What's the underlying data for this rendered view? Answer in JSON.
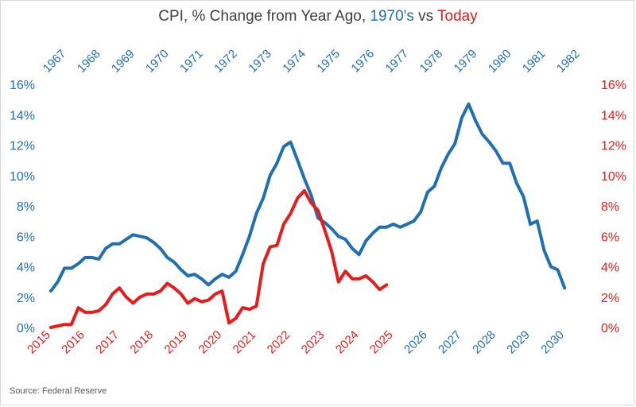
{
  "title": {
    "part1": "CPI, % Change from Year Ago, ",
    "part2": "1970's",
    "part3": " vs ",
    "part4": "Today"
  },
  "source": "Source: Federal Reserve",
  "colors": {
    "blue": "#1F6FB5",
    "red": "#E81A1A",
    "text": "#404040",
    "grid": "#d9d9d9"
  },
  "chart_data": {
    "type": "line",
    "title": "CPI, % Change from Year Ago, 1970's vs Today",
    "ylim": [
      0,
      16
    ],
    "y_ticks": [
      "0%",
      "2%",
      "4%",
      "6%",
      "8%",
      "10%",
      "12%",
      "14%",
      "16%"
    ],
    "y_tick_values": [
      0,
      2,
      4,
      6,
      8,
      10,
      12,
      14,
      16
    ],
    "x_bottom_ticks": [
      "2015",
      "2016",
      "2017",
      "2018",
      "2019",
      "2020",
      "2021",
      "2022",
      "2023",
      "2024",
      "2025",
      "2026",
      "2027",
      "2028",
      "2029",
      "2030"
    ],
    "x_top_ticks": [
      "1967",
      "1968",
      "1969",
      "1970",
      "1971",
      "1972",
      "1973",
      "1974",
      "1975",
      "1976",
      "1977",
      "1978",
      "1979",
      "1980",
      "1981",
      "1982"
    ],
    "grid": false,
    "series": [
      {
        "name": "1970's",
        "axis": "top",
        "x": [
          1967.0,
          1967.2,
          1967.4,
          1967.6,
          1967.8,
          1968.0,
          1968.2,
          1968.4,
          1968.6,
          1968.8,
          1969.0,
          1969.2,
          1969.4,
          1969.6,
          1969.8,
          1970.0,
          1970.2,
          1970.4,
          1970.6,
          1970.8,
          1971.0,
          1971.2,
          1971.4,
          1971.6,
          1971.8,
          1972.0,
          1972.2,
          1972.4,
          1972.6,
          1972.8,
          1973.0,
          1973.2,
          1973.4,
          1973.6,
          1973.8,
          1974.0,
          1974.2,
          1974.4,
          1974.6,
          1974.8,
          1975.0,
          1975.2,
          1975.4,
          1975.6,
          1975.8,
          1976.0,
          1976.2,
          1976.4,
          1976.6,
          1976.8,
          1977.0,
          1977.2,
          1977.4,
          1977.6,
          1977.8,
          1978.0,
          1978.2,
          1978.4,
          1978.6,
          1978.8,
          1979.0,
          1979.2,
          1979.4,
          1979.6,
          1979.8,
          1980.0,
          1980.2,
          1980.4,
          1980.6,
          1980.8,
          1981.0,
          1981.2,
          1981.4,
          1981.6,
          1981.8,
          1982.0
        ],
        "y": [
          2.4,
          3.0,
          3.9,
          3.9,
          4.2,
          4.6,
          4.6,
          4.5,
          5.2,
          5.5,
          5.5,
          5.8,
          6.1,
          6.0,
          5.9,
          5.6,
          5.2,
          4.6,
          4.3,
          3.8,
          3.4,
          3.5,
          3.2,
          2.8,
          3.2,
          3.5,
          3.3,
          3.7,
          4.8,
          6.0,
          7.5,
          8.5,
          10.0,
          10.8,
          11.9,
          12.2,
          11.0,
          9.8,
          8.7,
          7.2,
          6.9,
          6.5,
          6.0,
          5.8,
          5.2,
          4.8,
          5.7,
          6.2,
          6.6,
          6.6,
          6.8,
          6.6,
          6.8,
          7.0,
          7.6,
          8.9,
          9.3,
          10.5,
          11.4,
          12.1,
          13.8,
          14.7,
          13.6,
          12.7,
          12.2,
          11.6,
          10.8,
          10.8,
          9.5,
          8.6,
          6.8,
          7.0,
          5.1,
          4.0,
          3.8,
          2.6
        ]
      },
      {
        "name": "Today",
        "axis": "bottom",
        "x": [
          2015.0,
          2015.2,
          2015.4,
          2015.6,
          2015.8,
          2016.0,
          2016.2,
          2016.4,
          2016.6,
          2016.8,
          2017.0,
          2017.2,
          2017.4,
          2017.6,
          2017.8,
          2018.0,
          2018.2,
          2018.4,
          2018.6,
          2018.8,
          2019.0,
          2019.2,
          2019.4,
          2019.6,
          2019.8,
          2020.0,
          2020.2,
          2020.4,
          2020.6,
          2020.8,
          2021.0,
          2021.2,
          2021.4,
          2021.6,
          2021.8,
          2022.0,
          2022.2,
          2022.4,
          2022.6,
          2022.8,
          2023.0,
          2023.2,
          2023.4,
          2023.6,
          2023.8,
          2024.0,
          2024.2,
          2024.4,
          2024.6,
          2024.8
        ],
        "y": [
          0.0,
          0.1,
          0.2,
          0.2,
          1.3,
          1.0,
          1.0,
          1.1,
          1.5,
          2.2,
          2.6,
          2.0,
          1.6,
          2.0,
          2.2,
          2.2,
          2.4,
          2.9,
          2.6,
          2.2,
          1.6,
          1.9,
          1.7,
          1.8,
          2.2,
          2.4,
          0.3,
          0.6,
          1.3,
          1.2,
          1.4,
          4.2,
          5.3,
          5.4,
          6.8,
          7.5,
          8.5,
          9.0,
          8.2,
          7.7,
          6.4,
          5.0,
          3.0,
          3.7,
          3.2,
          3.2,
          3.4,
          3.0,
          2.5,
          2.8
        ]
      }
    ]
  }
}
